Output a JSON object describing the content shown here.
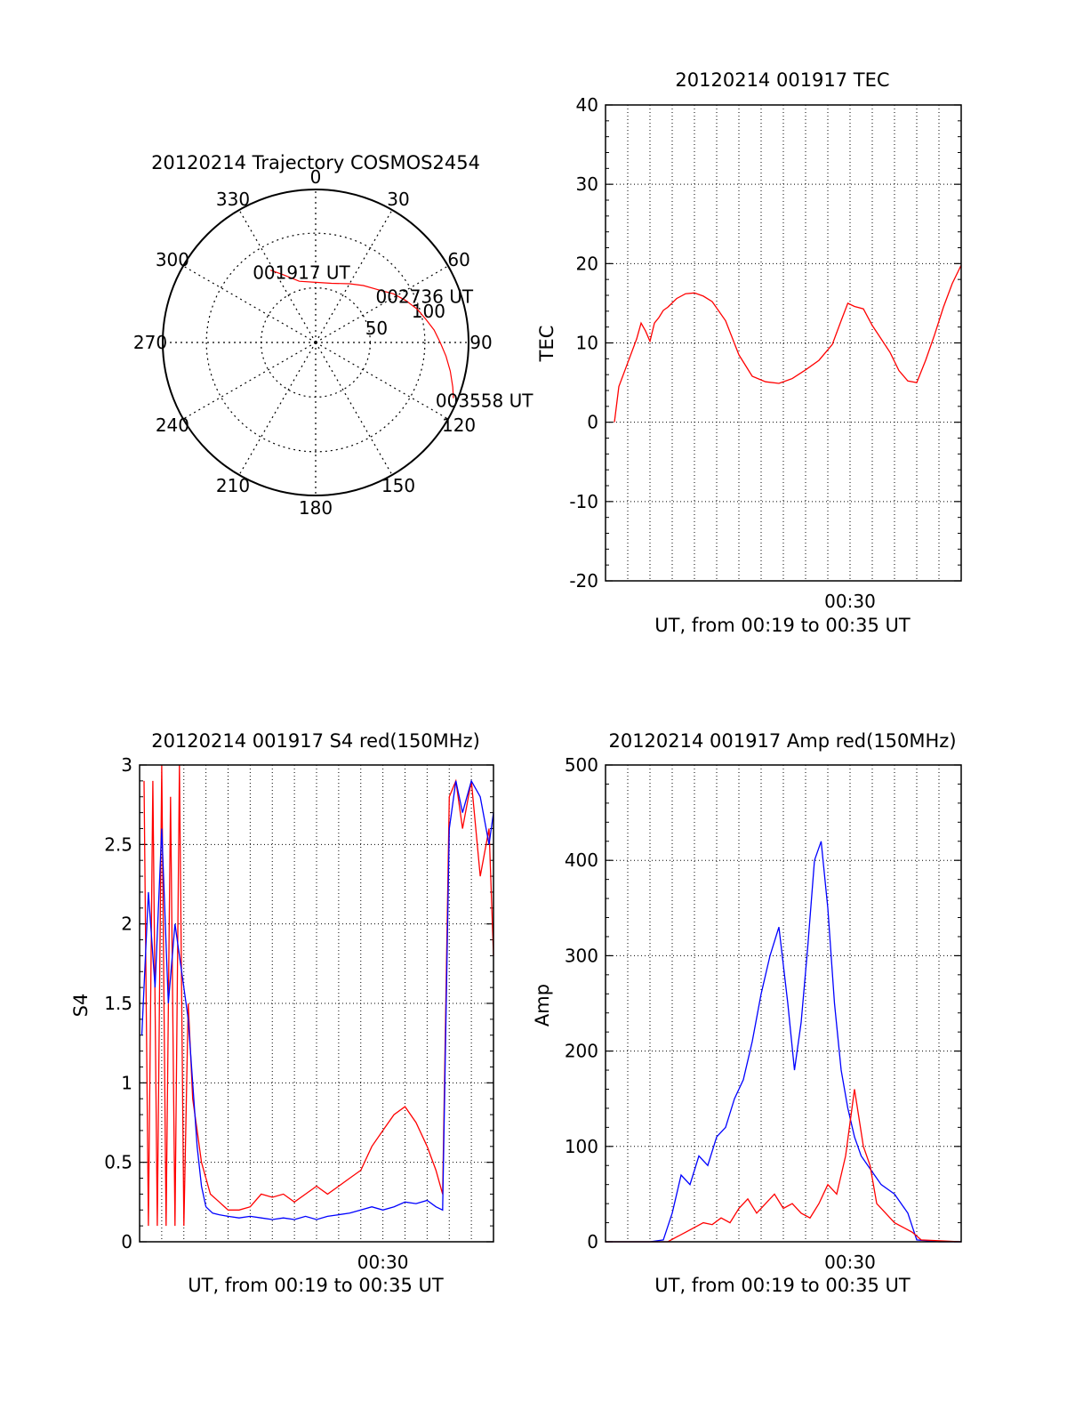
{
  "colors": {
    "red": "#ff0000",
    "blue": "#0000ff",
    "axis": "#000000",
    "grid": "#000000"
  },
  "chart_data": [
    {
      "id": "trajectory",
      "type": "polar",
      "title": "20120214 Trajectory COSMOS2454",
      "azimuth_labels": [
        "0",
        "30",
        "60",
        "90",
        "120",
        "150",
        "180",
        "210",
        "240",
        "270",
        "300",
        "330"
      ],
      "radial_labels": [
        "50",
        "100"
      ],
      "radial_values": [
        50,
        100
      ],
      "track": [
        {
          "az": -32,
          "r": 78
        },
        {
          "az": -25,
          "r": 68
        },
        {
          "az": -15,
          "r": 58
        },
        {
          "az": 0,
          "r": 55
        },
        {
          "az": 15,
          "r": 56
        },
        {
          "az": 30,
          "r": 62
        },
        {
          "az": 40,
          "r": 68
        },
        {
          "az": 50,
          "r": 75
        },
        {
          "az": 58,
          "r": 84
        },
        {
          "az": 65,
          "r": 91
        },
        {
          "az": 72,
          "r": 98
        },
        {
          "az": 78,
          "r": 103
        },
        {
          "az": 84,
          "r": 109
        },
        {
          "az": 90,
          "r": 114
        },
        {
          "az": 96,
          "r": 120
        },
        {
          "az": 102,
          "r": 126
        },
        {
          "az": 108,
          "r": 132
        },
        {
          "az": 112,
          "r": 136
        }
      ],
      "annotations": [
        {
          "text": "001917 UT",
          "az": -32,
          "r": 78
        },
        {
          "text": "002736 UT",
          "az": 58,
          "r": 84
        },
        {
          "text": "003558 UT",
          "az": 112,
          "r": 136
        }
      ]
    },
    {
      "id": "tec",
      "type": "line",
      "title": "20120214 001917 TEC",
      "xlabel": "UT, from 00:19 to 00:35 UT",
      "ylabel": "TEC",
      "xlim": [
        0,
        16
      ],
      "ylim": [
        -20,
        40
      ],
      "yticks": [
        -20,
        -10,
        0,
        10,
        20,
        30,
        40
      ],
      "xtick_labels": [
        {
          "x": 11,
          "label": "00:30"
        }
      ],
      "grid": true,
      "series": [
        {
          "color": "red",
          "x": [
            0.4,
            0.6,
            1.0,
            1.4,
            1.6,
            1.8,
            2.0,
            2.2,
            2.4,
            2.6,
            2.8,
            3.2,
            3.6,
            4.0,
            4.4,
            4.8,
            5.4,
            6.0,
            6.6,
            7.2,
            7.8,
            8.4,
            9.0,
            9.6,
            10.2,
            10.6,
            10.9,
            11.2,
            11.6,
            12.0,
            12.4,
            12.8,
            13.2,
            13.6,
            14.0,
            14.4,
            14.8,
            15.2,
            15.6,
            16.0
          ],
          "y": [
            0,
            4.5,
            7.5,
            10.5,
            12.5,
            11.5,
            10.2,
            12.5,
            13.2,
            14.1,
            14.5,
            15.6,
            16.2,
            16.3,
            15.9,
            15.2,
            12.8,
            8.5,
            5.8,
            5.1,
            4.9,
            5.5,
            6.6,
            7.8,
            9.8,
            12.8,
            15.0,
            14.6,
            14.3,
            12.2,
            10.5,
            8.8,
            6.5,
            5.2,
            5.0,
            7.8,
            11.0,
            14.5,
            17.5,
            19.8
          ]
        }
      ]
    },
    {
      "id": "s4",
      "type": "line",
      "title": "20120214 001917 S4 red(150MHz)",
      "xlabel": "UT, from 00:19 to 00:35 UT",
      "ylabel": "S4",
      "xlim": [
        0,
        16
      ],
      "ylim": [
        0,
        3
      ],
      "yticks": [
        0,
        0.5,
        1,
        1.5,
        2,
        2.5,
        3
      ],
      "ytick_labels": [
        "0",
        "0.5",
        "1",
        "1.5",
        "2",
        "2.5",
        "3"
      ],
      "xtick_labels": [
        {
          "x": 11,
          "label": "00:30"
        }
      ],
      "grid": true,
      "series": [
        {
          "color": "red",
          "x": [
            0.2,
            0.4,
            0.6,
            0.8,
            1.0,
            1.2,
            1.4,
            1.6,
            1.8,
            2.0,
            2.2,
            2.4,
            2.6,
            2.8,
            3.0,
            3.2,
            3.6,
            4.0,
            4.5,
            5.0,
            5.5,
            6.0,
            6.5,
            7.0,
            7.5,
            8.0,
            8.5,
            9.0,
            9.5,
            10.0,
            10.5,
            11.0,
            11.5,
            12.0,
            12.5,
            13.0,
            13.4,
            13.7,
            14.0,
            14.3,
            14.6,
            15.0,
            15.4,
            15.8,
            16.0
          ],
          "y": [
            2.9,
            0.1,
            2.9,
            0.1,
            3.0,
            0.1,
            2.8,
            0.1,
            3.0,
            0.1,
            1.5,
            0.9,
            0.7,
            0.5,
            0.4,
            0.3,
            0.25,
            0.2,
            0.2,
            0.22,
            0.3,
            0.28,
            0.3,
            0.25,
            0.3,
            0.35,
            0.3,
            0.35,
            0.4,
            0.45,
            0.6,
            0.7,
            0.8,
            0.85,
            0.75,
            0.6,
            0.45,
            0.3,
            2.8,
            2.9,
            2.6,
            2.9,
            2.3,
            2.6,
            1.8
          ]
        },
        {
          "color": "blue",
          "x": [
            0.1,
            0.4,
            0.7,
            1.0,
            1.3,
            1.6,
            1.9,
            2.2,
            2.4,
            2.6,
            2.8,
            3.0,
            3.3,
            3.6,
            4.0,
            4.5,
            5.0,
            5.5,
            6.0,
            6.5,
            7.0,
            7.5,
            8.0,
            8.5,
            9.0,
            9.5,
            10.0,
            10.5,
            11.0,
            11.5,
            12.0,
            12.5,
            13.0,
            13.4,
            13.7,
            14.0,
            14.3,
            14.6,
            15.0,
            15.4,
            15.8,
            16.0
          ],
          "y": [
            1.3,
            2.2,
            1.6,
            2.6,
            1.5,
            2.0,
            1.7,
            1.4,
            1.0,
            0.6,
            0.35,
            0.22,
            0.18,
            0.17,
            0.16,
            0.15,
            0.16,
            0.15,
            0.14,
            0.15,
            0.14,
            0.16,
            0.14,
            0.16,
            0.17,
            0.18,
            0.2,
            0.22,
            0.2,
            0.22,
            0.25,
            0.24,
            0.26,
            0.22,
            0.2,
            2.6,
            2.9,
            2.7,
            2.9,
            2.8,
            2.5,
            2.7
          ]
        }
      ]
    },
    {
      "id": "amp",
      "type": "line",
      "title": "20120214 001917 Amp red(150MHz)",
      "xlabel": "UT, from 00:19 to 00:35 UT",
      "ylabel": "Amp",
      "xlim": [
        0,
        16
      ],
      "ylim": [
        0,
        500
      ],
      "yticks": [
        0,
        100,
        200,
        300,
        400,
        500
      ],
      "xtick_labels": [
        {
          "x": 11,
          "label": "00:30"
        }
      ],
      "grid": true,
      "series": [
        {
          "color": "blue",
          "x": [
            0,
            1,
            2,
            2.6,
            3.0,
            3.4,
            3.8,
            4.2,
            4.6,
            5.0,
            5.4,
            5.8,
            6.2,
            6.6,
            7.0,
            7.4,
            7.8,
            8.2,
            8.5,
            8.8,
            9.1,
            9.4,
            9.7,
            10.0,
            10.3,
            10.6,
            10.9,
            11.2,
            11.5,
            11.8,
            12.1,
            12.4,
            12.7,
            13.0,
            13.3,
            13.6,
            14.0,
            15.0,
            16.0
          ],
          "y": [
            0,
            0,
            0,
            2,
            30,
            70,
            60,
            90,
            80,
            110,
            120,
            150,
            170,
            210,
            260,
            300,
            330,
            250,
            180,
            230,
            310,
            400,
            420,
            350,
            250,
            180,
            140,
            110,
            90,
            80,
            70,
            60,
            55,
            50,
            40,
            30,
            2,
            0,
            0
          ]
        },
        {
          "color": "red",
          "x": [
            0,
            2.8,
            3.2,
            3.6,
            4.0,
            4.4,
            4.8,
            5.2,
            5.6,
            6.0,
            6.4,
            6.8,
            7.2,
            7.6,
            8.0,
            8.4,
            8.8,
            9.2,
            9.6,
            10.0,
            10.4,
            10.8,
            11.2,
            11.6,
            11.9,
            12.2,
            12.6,
            13.0,
            13.4,
            13.8,
            14.2,
            16.0
          ],
          "y": [
            0,
            0,
            5,
            10,
            15,
            20,
            18,
            25,
            20,
            35,
            45,
            30,
            40,
            50,
            35,
            40,
            30,
            25,
            40,
            60,
            50,
            90,
            160,
            100,
            80,
            40,
            30,
            20,
            15,
            10,
            2,
            0
          ]
        }
      ]
    }
  ]
}
